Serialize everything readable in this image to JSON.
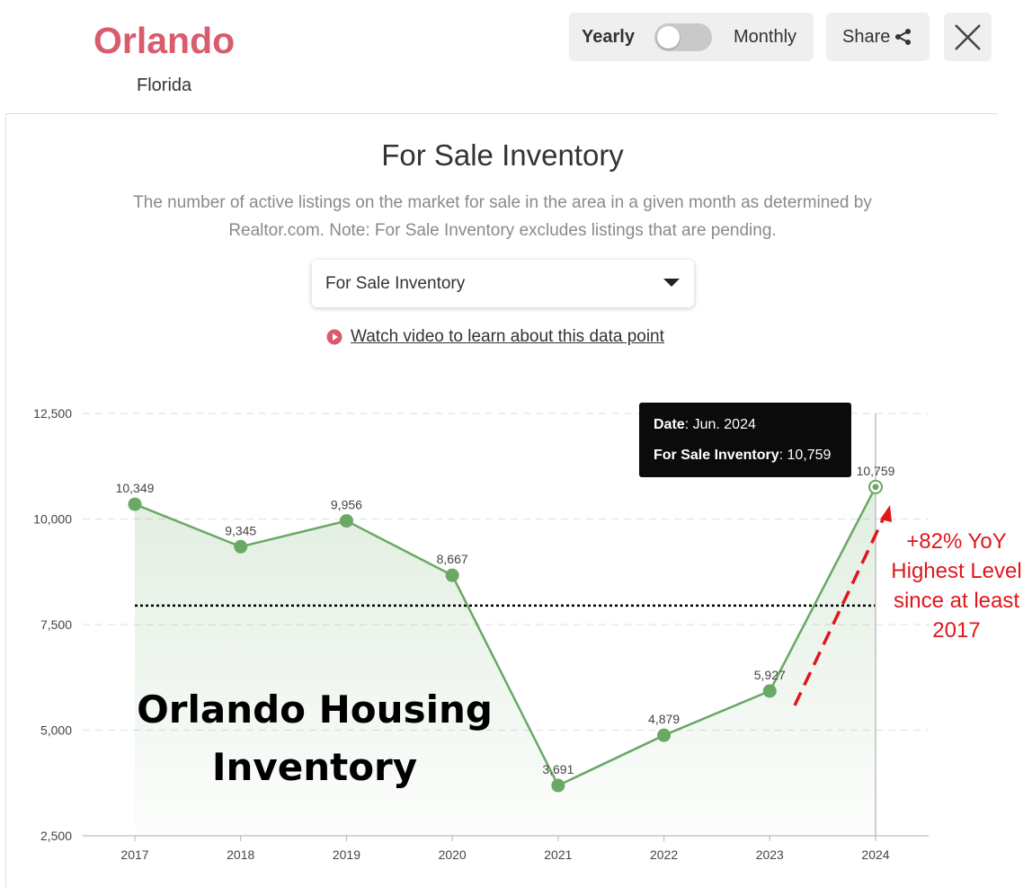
{
  "header": {
    "city": "Orlando",
    "state": "Florida",
    "toggle": {
      "left_label": "Yearly",
      "right_label": "Monthly",
      "state": "yearly"
    },
    "share_label": "Share"
  },
  "card": {
    "title": "For Sale Inventory",
    "description": "The number of active listings on the market for sale in the area in a given month as determined by Realtor.com. Note: For Sale Inventory excludes listings that are pending.",
    "dropdown": {
      "selected": "For Sale Inventory"
    },
    "video_link": "Watch video to learn about this data point"
  },
  "tooltip": {
    "date_label": "Date",
    "date_value": "Jun. 2024",
    "metric_label": "For Sale Inventory",
    "metric_value": "10,759"
  },
  "overlay": {
    "title_line1": "Orlando Housing",
    "title_line2": "Inventory",
    "annotation_line1": "+82% YoY",
    "annotation_line2": "Highest Level",
    "annotation_line3": "since at least",
    "annotation_line4": "2017"
  },
  "colors": {
    "city": "#d95c6d",
    "series": "#6aa865",
    "annotation": "#e0161b"
  },
  "chart_data": {
    "type": "line",
    "x": [
      "2017",
      "2018",
      "2019",
      "2020",
      "2021",
      "2022",
      "2023",
      "2024"
    ],
    "series": [
      {
        "values": [
          10349,
          9345,
          9956,
          8667,
          3691,
          4879,
          5927,
          10759
        ]
      }
    ],
    "data_labels": [
      "10,349",
      "9,345",
      "9,956",
      "8,667",
      "3,691",
      "4,879",
      "5,927",
      "10,759"
    ],
    "y_ticks": [
      2500,
      5000,
      7500,
      10000,
      12500
    ],
    "y_tick_labels": [
      "2,500",
      "5,000",
      "7,500",
      "10,000",
      "12,500"
    ],
    "ylim": [
      2500,
      12500
    ],
    "reference_line": 7950,
    "highlight_index": 7,
    "area_fill": true,
    "grid": "horizontal-dashed",
    "title": "",
    "xlabel": "",
    "ylabel": ""
  }
}
